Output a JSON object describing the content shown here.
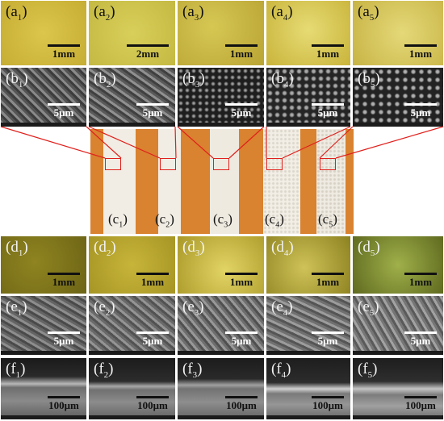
{
  "panels": {
    "a": [
      {
        "label": "a",
        "sub": "1",
        "scale": "1mm"
      },
      {
        "label": "a",
        "sub": "2",
        "scale": "2mm"
      },
      {
        "label": "a",
        "sub": "3",
        "scale": "1mm"
      },
      {
        "label": "a",
        "sub": "4",
        "scale": "1mm"
      },
      {
        "label": "a",
        "sub": "5",
        "scale": "1mm"
      }
    ],
    "b": [
      {
        "label": "b",
        "sub": "1",
        "scale": "5μm"
      },
      {
        "label": "b",
        "sub": "2",
        "scale": "5μm"
      },
      {
        "label": "b",
        "sub": "3",
        "scale": "5μm"
      },
      {
        "label": "b",
        "sub": "4",
        "scale": "5μm"
      },
      {
        "label": "b",
        "sub": "5",
        "scale": "5μm"
      }
    ],
    "c": [
      {
        "label": "c",
        "sub": "1"
      },
      {
        "label": "c",
        "sub": "2"
      },
      {
        "label": "c",
        "sub": "3"
      },
      {
        "label": "c",
        "sub": "4"
      },
      {
        "label": "c",
        "sub": "5"
      }
    ],
    "d": [
      {
        "label": "d",
        "sub": "1",
        "scale": "1mm"
      },
      {
        "label": "d",
        "sub": "2",
        "scale": "1mm"
      },
      {
        "label": "d",
        "sub": "3",
        "scale": "1mm"
      },
      {
        "label": "d",
        "sub": "4",
        "scale": "1mm"
      },
      {
        "label": "d",
        "sub": "5",
        "scale": "1mm"
      }
    ],
    "e": [
      {
        "label": "e",
        "sub": "1",
        "scale": "5μm"
      },
      {
        "label": "e",
        "sub": "2",
        "scale": "5μm"
      },
      {
        "label": "e",
        "sub": "3",
        "scale": "5μm"
      },
      {
        "label": "e",
        "sub": "4",
        "scale": "5μm"
      },
      {
        "label": "e",
        "sub": "5",
        "scale": "5μm"
      }
    ],
    "f": [
      {
        "label": "f",
        "sub": "1",
        "scale": "100μm"
      },
      {
        "label": "f",
        "sub": "2",
        "scale": "100μm"
      },
      {
        "label": "f",
        "sub": "3",
        "scale": "100μm"
      },
      {
        "label": "f",
        "sub": "4",
        "scale": "100μm"
      },
      {
        "label": "f",
        "sub": "5",
        "scale": "100μm"
      }
    ]
  },
  "colors": {
    "optical_yellow": "#d8c24a",
    "optical_dark": "#9a8d22",
    "sem_gray": "#6b6b6b",
    "coating_orange": "#d9822f",
    "coating_white": "#f1ede4",
    "connector_red": "#e0201c"
  }
}
